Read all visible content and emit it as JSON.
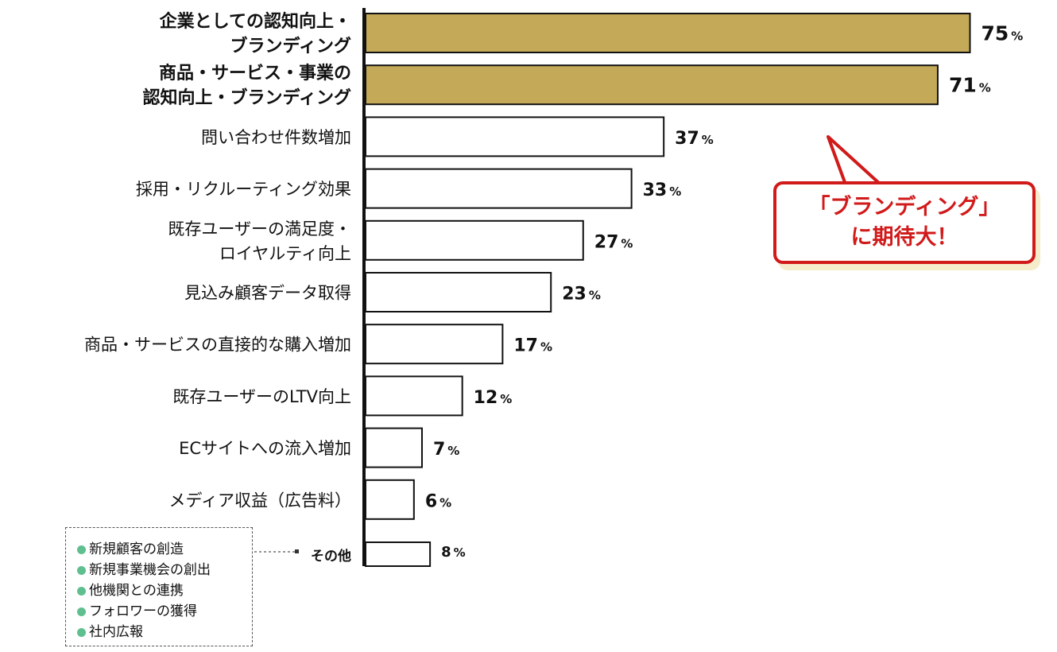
{
  "chart_data": {
    "type": "bar",
    "orientation": "horizontal",
    "title": "",
    "xlabel": "",
    "ylabel": "",
    "xlim": [
      0,
      100
    ],
    "unit": "%",
    "highlight_color": "#c4aa58",
    "bar_color": "#ffffff",
    "categories": [
      {
        "lines": [
          "企業としての認知向上・",
          "ブランディング"
        ],
        "value": 75,
        "highlight": true
      },
      {
        "lines": [
          "商品・サービス・事業の",
          "認知向上・ブランディング"
        ],
        "value": 71,
        "highlight": true
      },
      {
        "lines": [
          "問い合わせ件数増加"
        ],
        "value": 37,
        "highlight": false
      },
      {
        "lines": [
          "採用・リクルーティング効果"
        ],
        "value": 33,
        "highlight": false
      },
      {
        "lines": [
          "既存ユーザーの満足度・",
          "ロイヤルティ向上"
        ],
        "value": 27,
        "highlight": false
      },
      {
        "lines": [
          "見込み顧客データ取得"
        ],
        "value": 23,
        "highlight": false
      },
      {
        "lines": [
          "商品・サービスの直接的な購入増加"
        ],
        "value": 17,
        "highlight": false
      },
      {
        "lines": [
          "既存ユーザーのLTV向上"
        ],
        "value": 12,
        "highlight": false
      },
      {
        "lines": [
          "ECサイトへの流入増加"
        ],
        "value": 7,
        "highlight": false
      },
      {
        "lines": [
          "メディア収益（広告料）"
        ],
        "value": 6,
        "highlight": false
      },
      {
        "lines": [
          "その他"
        ],
        "value": 8,
        "highlight": false
      }
    ]
  },
  "callout": {
    "line1": "「ブランディング」",
    "line2": "に期待大！",
    "color": "#d11a1a"
  },
  "others_breakdown": {
    "items": [
      "新規顧客の創造",
      "新規事業機会の創出",
      "他機関との連携",
      "フォロワーの獲得",
      "社内広報"
    ],
    "dot_color": "#5fbf8f"
  }
}
